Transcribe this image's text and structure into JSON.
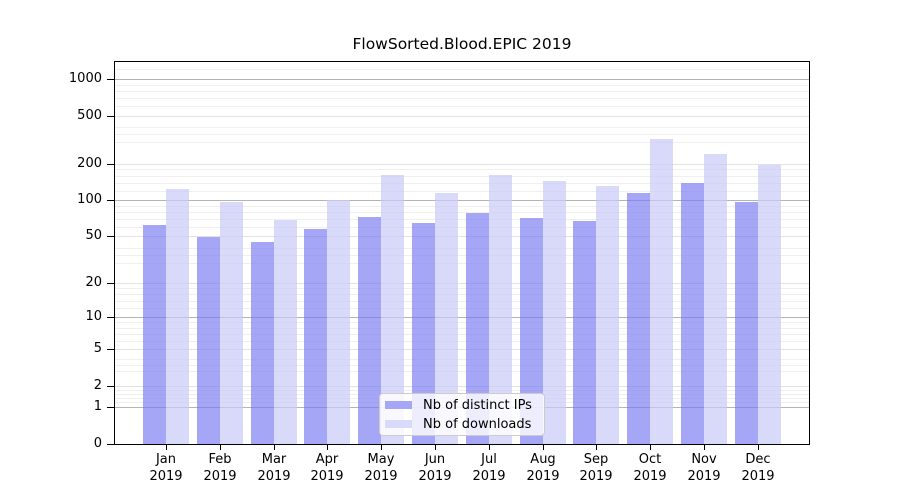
{
  "chart_data": {
    "type": "bar",
    "title": "FlowSorted.Blood.EPIC 2019",
    "categories": [
      "Jan 2019",
      "Feb 2019",
      "Mar 2019",
      "Apr 2019",
      "May 2019",
      "Jun 2019",
      "Jul 2019",
      "Aug 2019",
      "Sep 2019",
      "Oct 2019",
      "Nov 2019",
      "Dec 2019"
    ],
    "series": [
      {
        "name": "Nb of distinct IPs",
        "values": [
          62,
          49,
          45,
          57,
          73,
          65,
          79,
          71,
          67,
          114,
          138,
          97
        ]
      },
      {
        "name": "Nb of downloads",
        "values": [
          125,
          96,
          69,
          100,
          163,
          114,
          161,
          145,
          131,
          322,
          240,
          197
        ]
      }
    ],
    "xlabel": "",
    "ylabel": "",
    "y_scale": "log1p",
    "y_ticks": [
      0,
      1,
      2,
      5,
      10,
      20,
      50,
      100,
      200,
      500,
      1000
    ],
    "y_minor_multipliers": [
      1.2,
      1.4,
      1.6,
      1.8,
      3,
      3.5,
      4,
      6,
      7,
      8,
      9
    ],
    "ylim": [
      0,
      1400
    ],
    "grid": "on",
    "legend_position": "lower-center"
  },
  "style": {
    "series_fill": [
      "rgba(118,118,241,0.65)",
      "rgba(201,201,246,0.7)"
    ],
    "legend_swatch": [
      "#a6a6f6",
      "#d9d9f9"
    ],
    "grid_major": "#b4b4b4",
    "grid_sub": "#e2e2e2",
    "grid_minor": "#efefef",
    "spine": "#000000",
    "text": "#000000",
    "background": "#ffffff"
  }
}
